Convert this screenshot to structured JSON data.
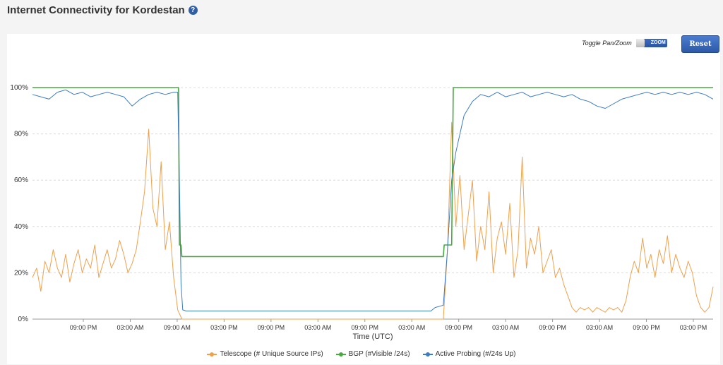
{
  "header": {
    "title": "Internet Connectivity for Kordestan",
    "help_icon": "question-circle-icon"
  },
  "controls": {
    "toggle_label": "Toggle Pan/Zoom",
    "toggle_state": "ZOOM",
    "reset_label": "Reset"
  },
  "chart_data": {
    "type": "line",
    "xlabel": "Time (UTC)",
    "ylabel": "",
    "ylim": [
      0,
      100
    ],
    "y_ticks": [
      "0%",
      "20%",
      "40%",
      "60%",
      "80%",
      "100%"
    ],
    "x_ticks": [
      "09:00 PM",
      "03:00 AM",
      "09:00 AM",
      "03:00 PM",
      "09:00 PM",
      "03:00 AM",
      "09:00 PM",
      "03:00 AM",
      "09:00 PM",
      "03:00 AM",
      "09:00 PM",
      "03:00 AM",
      "09:00 PM",
      "03:00 PM"
    ],
    "grid": true,
    "legend_position": "bottom",
    "series": [
      {
        "name": "Telescope (# Unique Source IPs)",
        "color": "#f0a04b",
        "points": [
          [
            0,
            18
          ],
          [
            0.05,
            22
          ],
          [
            0.1,
            12
          ],
          [
            0.15,
            25
          ],
          [
            0.2,
            20
          ],
          [
            0.25,
            30
          ],
          [
            0.3,
            22
          ],
          [
            0.35,
            18
          ],
          [
            0.4,
            28
          ],
          [
            0.45,
            16
          ],
          [
            0.5,
            24
          ],
          [
            0.55,
            30
          ],
          [
            0.6,
            20
          ],
          [
            0.65,
            26
          ],
          [
            0.7,
            22
          ],
          [
            0.75,
            32
          ],
          [
            0.8,
            18
          ],
          [
            0.85,
            24
          ],
          [
            0.9,
            30
          ],
          [
            0.95,
            22
          ],
          [
            1.0,
            26
          ],
          [
            1.05,
            34
          ],
          [
            1.1,
            28
          ],
          [
            1.15,
            20
          ],
          [
            1.2,
            24
          ],
          [
            1.25,
            30
          ],
          [
            1.3,
            42
          ],
          [
            1.35,
            55
          ],
          [
            1.4,
            82
          ],
          [
            1.45,
            48
          ],
          [
            1.5,
            40
          ],
          [
            1.55,
            68
          ],
          [
            1.6,
            30
          ],
          [
            1.65,
            42
          ],
          [
            1.7,
            18
          ],
          [
            1.75,
            4
          ],
          [
            1.8,
            0
          ],
          [
            1.9,
            0
          ],
          [
            2.0,
            0
          ],
          [
            2.5,
            0
          ],
          [
            3.0,
            0
          ],
          [
            3.5,
            0
          ],
          [
            4.0,
            0
          ],
          [
            4.5,
            0
          ],
          [
            4.95,
            0
          ],
          [
            5.0,
            30
          ],
          [
            5.05,
            85
          ],
          [
            5.1,
            40
          ],
          [
            5.15,
            62
          ],
          [
            5.2,
            30
          ],
          [
            5.25,
            45
          ],
          [
            5.3,
            60
          ],
          [
            5.35,
            25
          ],
          [
            5.4,
            40
          ],
          [
            5.45,
            30
          ],
          [
            5.5,
            55
          ],
          [
            5.55,
            20
          ],
          [
            5.6,
            35
          ],
          [
            5.65,
            42
          ],
          [
            5.7,
            28
          ],
          [
            5.75,
            50
          ],
          [
            5.8,
            18
          ],
          [
            5.85,
            30
          ],
          [
            5.9,
            70
          ],
          [
            5.95,
            22
          ],
          [
            6.0,
            35
          ],
          [
            6.05,
            28
          ],
          [
            6.1,
            40
          ],
          [
            6.15,
            20
          ],
          [
            6.2,
            25
          ],
          [
            6.25,
            30
          ],
          [
            6.3,
            18
          ],
          [
            6.35,
            22
          ],
          [
            6.4,
            15
          ],
          [
            6.45,
            10
          ],
          [
            6.5,
            5
          ],
          [
            6.55,
            3
          ],
          [
            6.6,
            5
          ],
          [
            6.65,
            4
          ],
          [
            6.7,
            5
          ],
          [
            6.75,
            3
          ],
          [
            6.8,
            5
          ],
          [
            6.85,
            4
          ],
          [
            6.9,
            3
          ],
          [
            6.95,
            5
          ],
          [
            7.0,
            4
          ],
          [
            7.05,
            5
          ],
          [
            7.1,
            3
          ],
          [
            7.15,
            8
          ],
          [
            7.2,
            18
          ],
          [
            7.25,
            25
          ],
          [
            7.3,
            20
          ],
          [
            7.35,
            35
          ],
          [
            7.4,
            22
          ],
          [
            7.45,
            28
          ],
          [
            7.5,
            18
          ],
          [
            7.55,
            30
          ],
          [
            7.6,
            24
          ],
          [
            7.65,
            36
          ],
          [
            7.7,
            20
          ],
          [
            7.75,
            28
          ],
          [
            7.8,
            22
          ],
          [
            7.85,
            18
          ],
          [
            7.9,
            25
          ],
          [
            7.95,
            20
          ],
          [
            8.0,
            10
          ],
          [
            8.05,
            5
          ],
          [
            8.1,
            3
          ],
          [
            8.15,
            5
          ],
          [
            8.2,
            14
          ]
        ]
      },
      {
        "name": "BGP (#Visible /24s)",
        "color": "#4aa843",
        "points": [
          [
            0,
            100
          ],
          [
            1.76,
            100
          ],
          [
            1.77,
            32
          ],
          [
            1.79,
            32
          ],
          [
            1.8,
            27
          ],
          [
            4.95,
            27
          ],
          [
            4.96,
            32
          ],
          [
            5.05,
            32
          ],
          [
            5.07,
            100
          ],
          [
            8.2,
            100
          ]
        ]
      },
      {
        "name": "Active Probing (#/24s Up)",
        "color": "#3b7cc4",
        "points": [
          [
            0,
            97
          ],
          [
            0.1,
            96
          ],
          [
            0.2,
            95
          ],
          [
            0.3,
            98
          ],
          [
            0.4,
            99
          ],
          [
            0.5,
            97
          ],
          [
            0.6,
            98
          ],
          [
            0.7,
            96
          ],
          [
            0.8,
            97
          ],
          [
            0.9,
            98
          ],
          [
            1.0,
            97
          ],
          [
            1.1,
            96
          ],
          [
            1.2,
            92
          ],
          [
            1.3,
            95
          ],
          [
            1.4,
            97
          ],
          [
            1.5,
            98
          ],
          [
            1.6,
            97
          ],
          [
            1.7,
            98
          ],
          [
            1.75,
            98
          ],
          [
            1.77,
            60
          ],
          [
            1.79,
            15
          ],
          [
            1.81,
            4
          ],
          [
            1.85,
            3.5
          ],
          [
            2.0,
            3.5
          ],
          [
            3.0,
            3.5
          ],
          [
            4.0,
            3.5
          ],
          [
            4.8,
            3.5
          ],
          [
            4.85,
            5
          ],
          [
            4.95,
            6
          ],
          [
            5.0,
            30
          ],
          [
            5.05,
            60
          ],
          [
            5.1,
            72
          ],
          [
            5.15,
            80
          ],
          [
            5.2,
            88
          ],
          [
            5.3,
            94
          ],
          [
            5.4,
            97
          ],
          [
            5.5,
            96
          ],
          [
            5.6,
            98
          ],
          [
            5.7,
            96
          ],
          [
            5.8,
            97
          ],
          [
            5.9,
            98
          ],
          [
            6.0,
            96
          ],
          [
            6.1,
            97
          ],
          [
            6.2,
            98
          ],
          [
            6.3,
            97
          ],
          [
            6.4,
            96
          ],
          [
            6.5,
            97
          ],
          [
            6.6,
            95
          ],
          [
            6.7,
            94
          ],
          [
            6.8,
            92
          ],
          [
            6.9,
            91
          ],
          [
            7.0,
            93
          ],
          [
            7.1,
            95
          ],
          [
            7.2,
            96
          ],
          [
            7.3,
            97
          ],
          [
            7.4,
            98
          ],
          [
            7.5,
            97
          ],
          [
            7.6,
            98
          ],
          [
            7.7,
            97
          ],
          [
            7.8,
            98
          ],
          [
            7.9,
            97
          ],
          [
            8.0,
            98
          ],
          [
            8.1,
            97
          ],
          [
            8.2,
            95
          ]
        ]
      }
    ]
  }
}
